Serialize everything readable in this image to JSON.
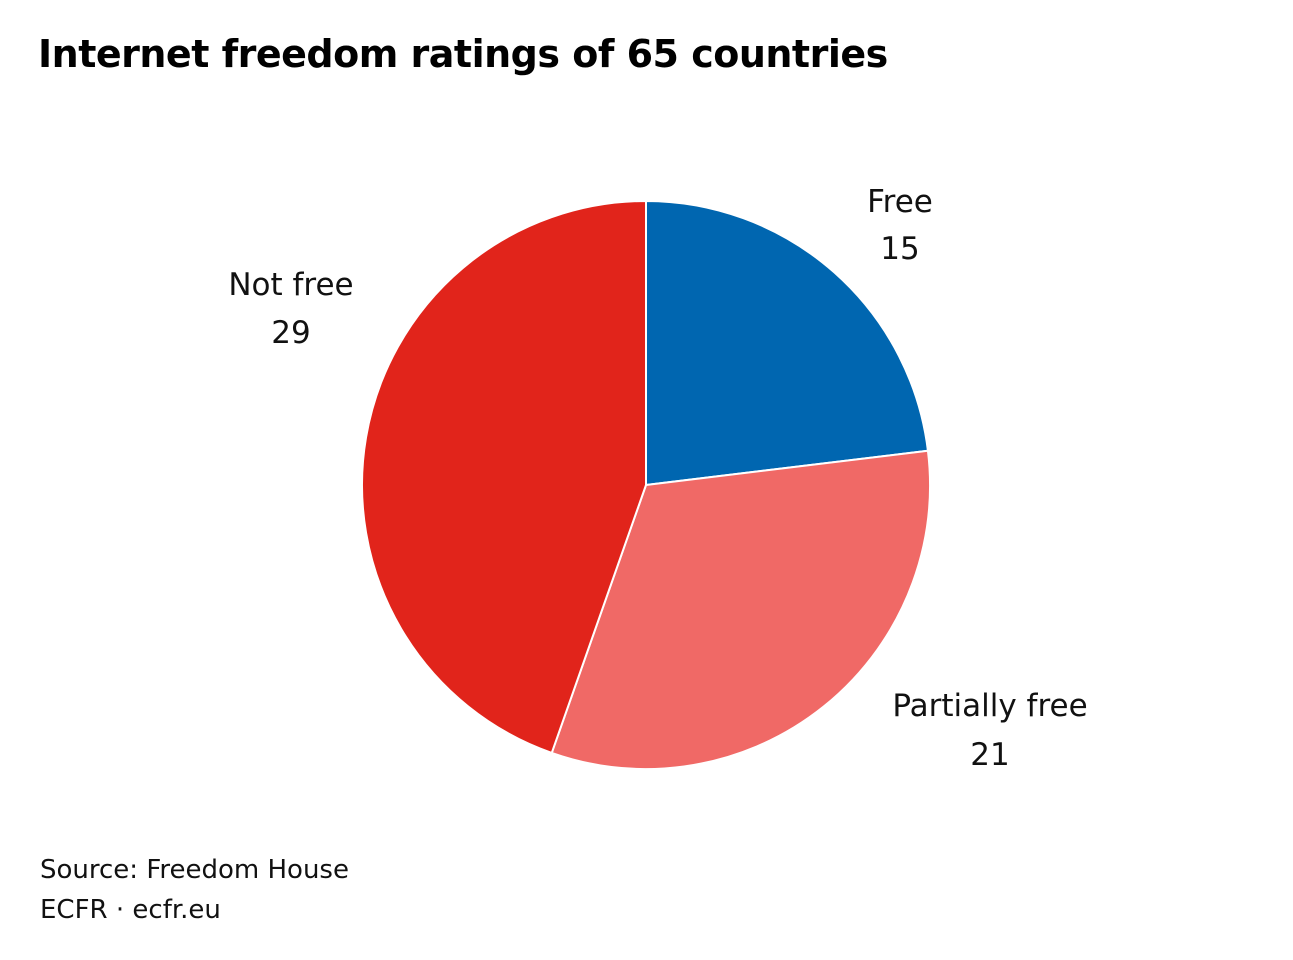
{
  "chart_data": {
    "type": "pie",
    "title": "Internet freedom ratings of 65 countries",
    "categories": [
      "Free",
      "Partially free",
      "Not free"
    ],
    "values": [
      15,
      21,
      29
    ],
    "value_labels": [
      "15",
      "21",
      "29"
    ],
    "colors": [
      "#0066b0",
      "#f06966",
      "#e1241b"
    ],
    "start_angle": "12 o'clock",
    "direction": "clockwise"
  },
  "footer": {
    "source": "Source: Freedom House",
    "credit": "ECFR · ecfr.eu"
  }
}
